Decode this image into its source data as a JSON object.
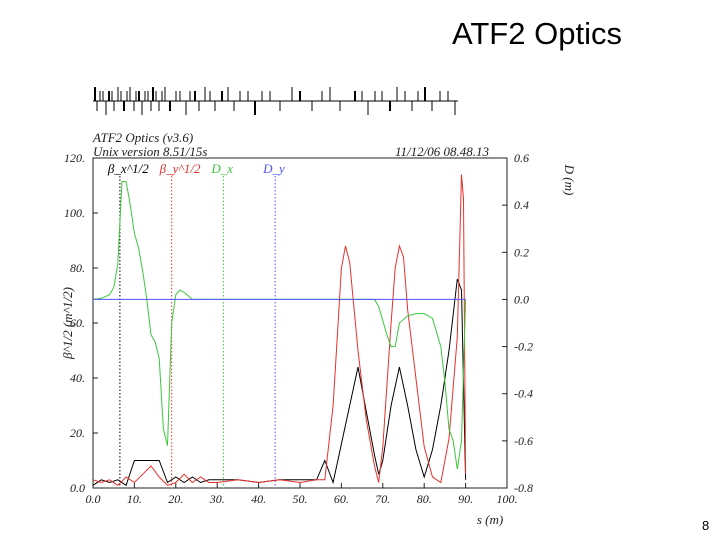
{
  "slide": {
    "title": "ATF2 Optics",
    "page_number": "8"
  },
  "plot_header": {
    "program": "ATF2 Optics (v3.6)",
    "version": "Unix version 8.51/15s",
    "date": "11/12/06  08.48.13"
  },
  "colors": {
    "beta_x": "#000000",
    "beta_y": "#e8302c",
    "dx": "#3cc83c",
    "dy": "#5050ff",
    "axes": "#222222"
  },
  "chart_data": {
    "type": "line",
    "title": "ATF2 Optics (v3.6)",
    "xlabel": "s (m)",
    "ylabel": "β^1/2 (m^1/2)",
    "y2label": "D (m)",
    "xlim": [
      0,
      100
    ],
    "ylim": [
      0,
      120
    ],
    "y2lim": [
      -0.8,
      0.6
    ],
    "x_ticks": [
      "0.0",
      "10.",
      "20.",
      "30.",
      "40.",
      "50.",
      "60.",
      "70.",
      "80.",
      "90.",
      "100."
    ],
    "y_ticks": [
      "0.0",
      "20.",
      "40.",
      "60.",
      "80.",
      "100.",
      "120."
    ],
    "y2_ticks": [
      "-0.8",
      "-0.6",
      "-0.4",
      "-0.2",
      "0.0",
      "0.2",
      "0.4",
      "0.6"
    ],
    "legend": [
      {
        "label": "β_x^1/2",
        "x": 6.5
      },
      {
        "label": "β_y^1/2",
        "x": 19
      },
      {
        "label": "D_x",
        "x": 31.5
      },
      {
        "label": "D_y",
        "x": 44
      }
    ],
    "series": [
      {
        "name": "β_x^1/2",
        "axis": "left",
        "x": [
          0,
          2,
          4,
          6,
          8,
          10,
          12,
          14,
          16,
          18,
          20,
          22,
          24,
          26,
          28,
          30,
          35,
          40,
          45,
          50,
          54,
          56,
          58,
          60,
          62,
          64,
          66,
          68,
          69,
          70,
          72,
          74,
          76,
          78,
          80,
          82,
          84,
          86,
          88,
          89,
          90
        ],
        "values": [
          1,
          3,
          2,
          3,
          1,
          10,
          10,
          10,
          10,
          2,
          4,
          2,
          4,
          2,
          3,
          3,
          3,
          2,
          3,
          3,
          3,
          10,
          2,
          16,
          30,
          44,
          28,
          12,
          5,
          10,
          30,
          44,
          30,
          14,
          4,
          14,
          30,
          50,
          76,
          72,
          3
        ]
      },
      {
        "name": "β_y^1/2",
        "axis": "left",
        "x": [
          0,
          2,
          4,
          6,
          8,
          10,
          12,
          14,
          16,
          18,
          20,
          22,
          24,
          26,
          28,
          30,
          35,
          40,
          45,
          50,
          54,
          56,
          58,
          59,
          60,
          61,
          62,
          64,
          66,
          68,
          69,
          70,
          72,
          73,
          74,
          75,
          76,
          78,
          80,
          82,
          84,
          86,
          88,
          89,
          89.5,
          90
        ],
        "values": [
          3,
          2,
          3,
          1,
          4,
          2,
          5,
          8,
          4,
          1,
          2,
          5,
          2,
          4,
          2,
          2,
          3,
          2,
          3,
          2,
          3,
          3,
          30,
          55,
          80,
          88,
          82,
          50,
          25,
          8,
          2,
          15,
          60,
          80,
          88,
          84,
          65,
          40,
          15,
          4,
          2,
          18,
          55,
          114,
          105,
          5
        ]
      },
      {
        "name": "D_x",
        "axis": "right",
        "x": [
          0,
          2,
          4,
          5,
          6,
          7,
          8,
          9,
          10,
          11,
          12,
          13,
          14,
          15,
          16,
          17,
          18,
          19,
          20,
          21,
          22,
          24,
          30,
          40,
          50,
          60,
          68,
          69,
          71,
          72,
          73,
          74,
          76,
          78,
          80,
          82,
          84,
          85,
          86,
          87,
          88,
          89,
          90
        ],
        "values": [
          0.0,
          0.005,
          0.02,
          0.05,
          0.15,
          0.5,
          0.5,
          0.4,
          0.28,
          0.22,
          0.12,
          0.0,
          -0.15,
          -0.18,
          -0.25,
          -0.55,
          -0.62,
          -0.1,
          0.02,
          0.04,
          0.03,
          0.0,
          0.0,
          0.0,
          0.0,
          0.0,
          0.0,
          -0.03,
          -0.15,
          -0.2,
          -0.2,
          -0.1,
          -0.07,
          -0.06,
          -0.06,
          -0.08,
          -0.2,
          -0.35,
          -0.55,
          -0.6,
          -0.72,
          -0.6,
          0.0
        ]
      },
      {
        "name": "D_y",
        "axis": "right",
        "x": [
          0,
          90
        ],
        "values": [
          0.0,
          0.0
        ]
      }
    ],
    "grid": false,
    "legend_position": "top-left"
  }
}
